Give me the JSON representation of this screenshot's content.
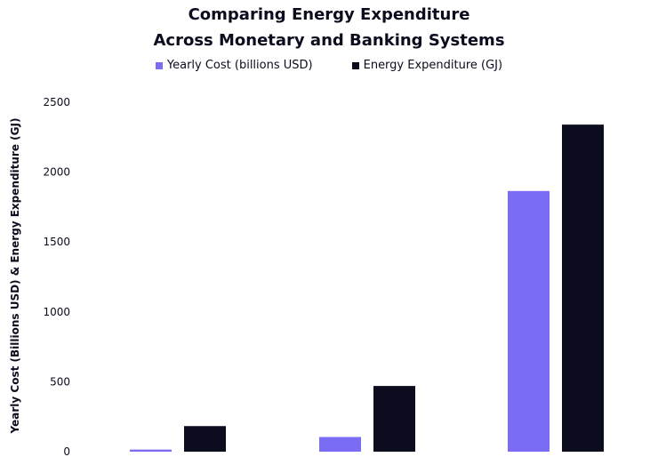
{
  "chart_data": {
    "type": "bar",
    "title_line1": "Comparing Energy Expenditure",
    "title_line2": "Across Monetary and Banking Systems",
    "xlabel": "",
    "ylabel": "Yearly Cost (Billions USD) & Energy Expenditure (GJ)",
    "ylim": [
      0,
      2500
    ],
    "yticks": [
      0,
      500,
      1000,
      1500,
      2000,
      2500
    ],
    "categories": [
      "",
      "",
      ""
    ],
    "series": [
      {
        "name": "Yearly Cost (billions USD)",
        "color": "#7b6cf6",
        "values": [
          15,
          105,
          1865
        ]
      },
      {
        "name": "Energy Expenditure (GJ)",
        "color": "#0b0c1e",
        "values": [
          183,
          470,
          2340
        ]
      }
    ],
    "legend_position": "top-center",
    "grid": false
  }
}
